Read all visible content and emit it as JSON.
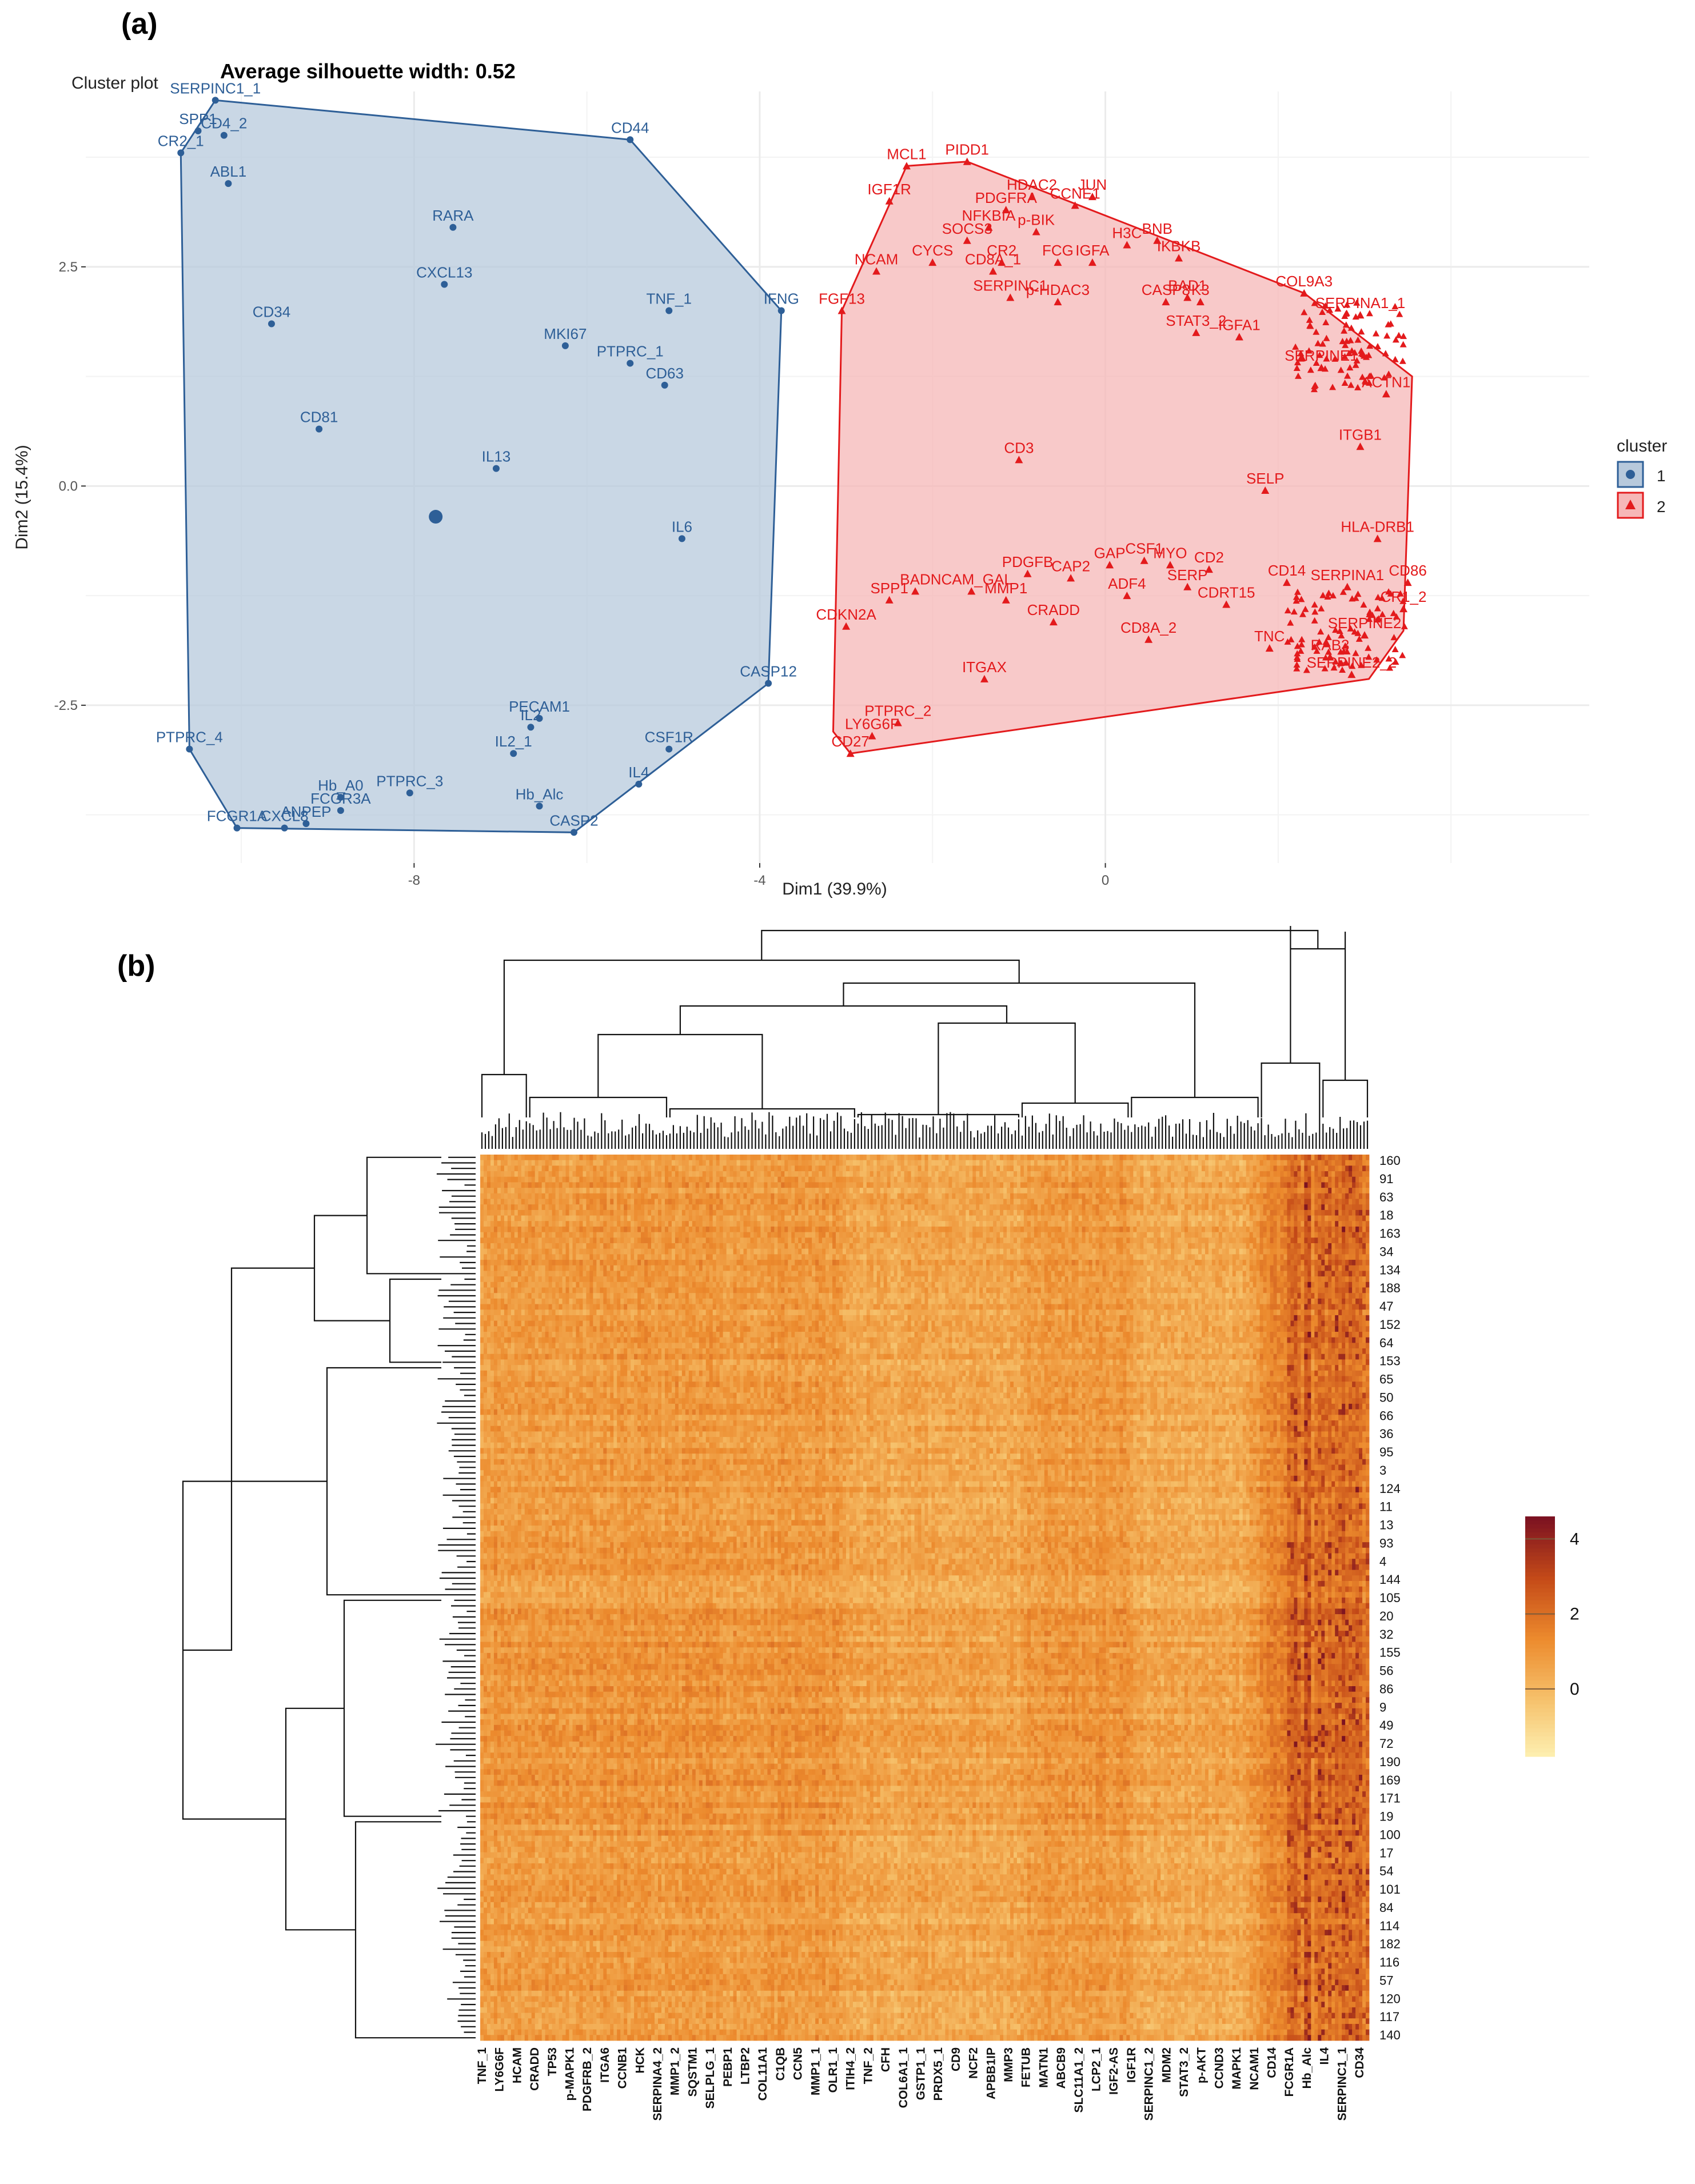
{
  "panel_a": {
    "letter": "(a)"
  },
  "panel_b": {
    "letter": "(b)"
  },
  "chart_data": [
    {
      "type": "scatter",
      "corner_title": "Cluster plot",
      "title": "Average silhouette width: 0.52",
      "xlabel": "Dim1 (39.9%)",
      "ylabel": "Dim2 (15.4%)",
      "xlim": [
        -11.8,
        5.6
      ],
      "ylim": [
        -4.3,
        4.5
      ],
      "x_ticks": [
        -8,
        -4,
        0
      ],
      "y_ticks": [
        2.5,
        0.0,
        -2.5
      ],
      "grid": true,
      "legend": {
        "title": "cluster",
        "entries": [
          "1",
          "2"
        ],
        "position": "right"
      },
      "colors": {
        "cluster1": "#2e5f97",
        "cluster1_fill": "#b7c9dc",
        "cluster2": "#e31a1c",
        "cluster2_fill": "#f6b7b7",
        "grid": "#ebebeb"
      },
      "cluster1": {
        "hull": [
          [
            -10.3,
            4.4
          ],
          [
            -5.5,
            3.95
          ],
          [
            -3.75,
            2.0
          ],
          [
            -3.9,
            -2.25
          ],
          [
            -6.15,
            -3.95
          ],
          [
            -10.05,
            -3.9
          ],
          [
            -10.6,
            -3.0
          ],
          [
            -10.7,
            3.8
          ]
        ],
        "centroid": [
          -7.75,
          -0.35
        ],
        "points": [
          {
            "label": "SERPINC1_1",
            "x": -10.3,
            "y": 4.4
          },
          {
            "label": "SPP1",
            "x": -10.5,
            "y": 4.05
          },
          {
            "label": "CD4_2",
            "x": -10.2,
            "y": 4.0
          },
          {
            "label": "CR2_1",
            "x": -10.7,
            "y": 3.8
          },
          {
            "label": "ABL1",
            "x": -10.15,
            "y": 3.45
          },
          {
            "label": "CD44",
            "x": -5.5,
            "y": 3.95
          },
          {
            "label": "RARA",
            "x": -7.55,
            "y": 2.95
          },
          {
            "label": "CXCL13",
            "x": -7.65,
            "y": 2.3
          },
          {
            "label": "CD34",
            "x": -9.65,
            "y": 1.85
          },
          {
            "label": "TNF_1",
            "x": -5.05,
            "y": 2.0
          },
          {
            "label": "IFNG",
            "x": -3.75,
            "y": 2.0
          },
          {
            "label": "MKI67",
            "x": -6.25,
            "y": 1.6
          },
          {
            "label": "PTPRC_1",
            "x": -5.5,
            "y": 1.4
          },
          {
            "label": "CD63",
            "x": -5.1,
            "y": 1.15
          },
          {
            "label": "CD81",
            "x": -9.1,
            "y": 0.65
          },
          {
            "label": "IL13",
            "x": -7.05,
            "y": 0.2
          },
          {
            "label": "IL6",
            "x": -4.9,
            "y": -0.6
          },
          {
            "label": "CASP12",
            "x": -3.9,
            "y": -2.25
          },
          {
            "label": "PECAM1",
            "x": -6.55,
            "y": -2.65
          },
          {
            "label": "IL2",
            "x": -6.65,
            "y": -2.75
          },
          {
            "label": "IL2_1",
            "x": -6.85,
            "y": -3.05
          },
          {
            "label": "CSF1R",
            "x": -5.05,
            "y": -3.0
          },
          {
            "label": "IL4",
            "x": -5.4,
            "y": -3.4
          },
          {
            "label": "PTPRC_4",
            "x": -10.6,
            "y": -3.0
          },
          {
            "label": "PTPRC_3",
            "x": -8.05,
            "y": -3.5
          },
          {
            "label": "Hb_A0",
            "x": -8.85,
            "y": -3.55
          },
          {
            "label": "FCGR3A",
            "x": -8.85,
            "y": -3.7
          },
          {
            "label": "Hb_Alc",
            "x": -6.55,
            "y": -3.65
          },
          {
            "label": "CASP2",
            "x": -6.15,
            "y": -3.95
          },
          {
            "label": "FCGR1A",
            "x": -10.05,
            "y": -3.9
          },
          {
            "label": "CXCL8",
            "x": -9.5,
            "y": -3.9
          },
          {
            "label": "ANPEP",
            "x": -9.25,
            "y": -3.85
          }
        ]
      },
      "cluster2": {
        "hull": [
          [
            -2.3,
            3.65
          ],
          [
            -1.6,
            3.7
          ],
          [
            2.3,
            2.2
          ],
          [
            3.55,
            1.25
          ],
          [
            3.45,
            -1.65
          ],
          [
            3.05,
            -2.2
          ],
          [
            -2.95,
            -3.05
          ],
          [
            -3.15,
            -2.8
          ],
          [
            -3.05,
            2.0
          ]
        ],
        "points": [
          {
            "label": "MCL1",
            "x": -2.3,
            "y": 3.65
          },
          {
            "label": "PIDD1",
            "x": -1.6,
            "y": 3.7
          },
          {
            "label": "IGF1R",
            "x": -2.5,
            "y": 3.25
          },
          {
            "label": "JUN",
            "x": -0.15,
            "y": 3.3
          },
          {
            "label": "HDAC2",
            "x": -0.85,
            "y": 3.3
          },
          {
            "label": "CCNE1",
            "x": -0.35,
            "y": 3.2
          },
          {
            "label": "PDGFRA",
            "x": -1.15,
            "y": 3.15
          },
          {
            "label": "NFKBIA",
            "x": -1.35,
            "y": 2.95
          },
          {
            "label": "p-BIK",
            "x": -0.8,
            "y": 2.9
          },
          {
            "label": "SOCS3",
            "x": -1.6,
            "y": 2.8
          },
          {
            "label": "CYCS",
            "x": -2.0,
            "y": 2.55
          },
          {
            "label": "NCAM",
            "x": -2.65,
            "y": 2.45
          },
          {
            "label": "CD8A_1",
            "x": -1.3,
            "y": 2.45
          },
          {
            "label": "CR2",
            "x": -1.2,
            "y": 2.55
          },
          {
            "label": "FCG",
            "x": -0.55,
            "y": 2.55
          },
          {
            "label": "IGFA",
            "x": -0.15,
            "y": 2.55
          },
          {
            "label": "H3C",
            "x": 0.25,
            "y": 2.75
          },
          {
            "label": "BNB",
            "x": 0.6,
            "y": 2.8
          },
          {
            "label": "IKBKB",
            "x": 0.85,
            "y": 2.6
          },
          {
            "label": "BAD1",
            "x": 0.95,
            "y": 2.15
          },
          {
            "label": "SERPINC1",
            "x": -1.1,
            "y": 2.15
          },
          {
            "label": "p-HDAC3",
            "x": -0.55,
            "y": 2.1
          },
          {
            "label": "CASP8",
            "x": 0.7,
            "y": 2.1
          },
          {
            "label": "K3",
            "x": 1.1,
            "y": 2.1
          },
          {
            "label": "STAT3_2",
            "x": 1.05,
            "y": 1.75
          },
          {
            "label": "IGFA1",
            "x": 1.55,
            "y": 1.7
          },
          {
            "label": "FGF13",
            "x": -3.05,
            "y": 2.0
          },
          {
            "label": "COL9A3",
            "x": 2.3,
            "y": 2.2
          },
          {
            "label": "SERPINA1_1",
            "x": 2.95,
            "y": 1.95
          },
          {
            "label": "SERPINE1",
            "x": 2.5,
            "y": 1.35
          },
          {
            "label": "ACTN1",
            "x": 3.25,
            "y": 1.05
          },
          {
            "label": "ITGB1",
            "x": 2.95,
            "y": 0.45
          },
          {
            "label": "CD3",
            "x": -1.0,
            "y": 0.3
          },
          {
            "label": "SELP",
            "x": 1.85,
            "y": -0.05
          },
          {
            "label": "HLA-DRB1",
            "x": 3.15,
            "y": -0.6
          },
          {
            "label": "CSF1",
            "x": 0.45,
            "y": -0.85
          },
          {
            "label": "GAP",
            "x": 0.05,
            "y": -0.9
          },
          {
            "label": "MYO",
            "x": 0.75,
            "y": -0.9
          },
          {
            "label": "CD2",
            "x": 1.2,
            "y": -0.95
          },
          {
            "label": "PDGFB",
            "x": -0.9,
            "y": -1.0
          },
          {
            "label": "CAP2",
            "x": -0.4,
            "y": -1.05
          },
          {
            "label": "SERP",
            "x": 0.95,
            "y": -1.15
          },
          {
            "label": "NCAM_GAL",
            "x": -1.55,
            "y": -1.2
          },
          {
            "label": "BAD",
            "x": -2.2,
            "y": -1.2
          },
          {
            "label": "SPP1",
            "x": -2.5,
            "y": -1.3
          },
          {
            "label": "MMP1",
            "x": -1.15,
            "y": -1.3
          },
          {
            "label": "ADF4",
            "x": 0.25,
            "y": -1.25
          },
          {
            "label": "CD14",
            "x": 2.1,
            "y": -1.1
          },
          {
            "label": "SERPINA1",
            "x": 2.8,
            "y": -1.15
          },
          {
            "label": "CD86",
            "x": 3.5,
            "y": -1.1
          },
          {
            "label": "CDRT15",
            "x": 1.4,
            "y": -1.35
          },
          {
            "label": "CR1_2",
            "x": 3.45,
            "y": -1.4
          },
          {
            "label": "CRADD",
            "x": -0.6,
            "y": -1.55
          },
          {
            "label": "CDKN2A",
            "x": -3.0,
            "y": -1.6
          },
          {
            "label": "CD8A_2",
            "x": 0.5,
            "y": -1.75
          },
          {
            "label": "TNC",
            "x": 1.9,
            "y": -1.85
          },
          {
            "label": "SERPINE2",
            "x": 3.0,
            "y": -1.7
          },
          {
            "label": "RAB3",
            "x": 2.6,
            "y": -1.95
          },
          {
            "label": "SERPINE2_2",
            "x": 2.85,
            "y": -2.15
          },
          {
            "label": "ITGAX",
            "x": -1.4,
            "y": -2.2
          },
          {
            "label": "PTPRC_2",
            "x": -2.4,
            "y": -2.7
          },
          {
            "label": "LY6G6F",
            "x": -2.7,
            "y": -2.85
          },
          {
            "label": "CD27",
            "x": -2.95,
            "y": -3.05
          }
        ]
      }
    },
    {
      "type": "heatmap",
      "colorbar": {
        "ticks": [
          4,
          2,
          0
        ],
        "min": -1.8,
        "max": 4.6,
        "colors": [
          "#fdf1b3",
          "#f6c06a",
          "#ec8a2d",
          "#c44a18",
          "#7c1221"
        ]
      },
      "columns": [
        "TNF_1",
        "LY6G6F",
        "HCAM",
        "CRADD",
        "TP53",
        "p-MAPK1",
        "PDGFRB_2",
        "ITGA6",
        "CCNB1",
        "HCK",
        "SERPINA4_2",
        "MMP1_2",
        "SQSTM1",
        "SELPLG_1",
        "PEBP1",
        "LTBP2",
        "COL11A1",
        "C1QB",
        "CCN5",
        "MMP1_1",
        "OLR1_1",
        "ITIH4_2",
        "TNF_2",
        "CFH",
        "COL6A1_1",
        "GSTP1_1",
        "PRDX5_1",
        "CD9",
        "NCF2",
        "APBB1IP",
        "MMP3",
        "FETUB",
        "MATN1",
        "ABCB9",
        "SLC11A1_2",
        "LCP2_1",
        "IGF2-AS",
        "IGF1R",
        "SERPINC1_2",
        "MDM2",
        "STAT3_2",
        "p-AKT",
        "CCND3",
        "MAPK1",
        "NCAM1",
        "CD14",
        "FCGR1A",
        "Hb_Alc",
        "IL4",
        "SERPINC1_1",
        "CD34"
      ],
      "rows": [
        "160",
        "91",
        "63",
        "18",
        "163",
        "34",
        "134",
        "188",
        "47",
        "152",
        "64",
        "153",
        "65",
        "50",
        "66",
        "36",
        "95",
        "3",
        "124",
        "11",
        "13",
        "93",
        "4",
        "144",
        "105",
        "20",
        "32",
        "155",
        "56",
        "86",
        "9",
        "49",
        "72",
        "190",
        "169",
        "171",
        "19",
        "100",
        "17",
        "54",
        "101",
        "84",
        "114",
        "182",
        "116",
        "57",
        "120",
        "117",
        "140"
      ]
    }
  ]
}
